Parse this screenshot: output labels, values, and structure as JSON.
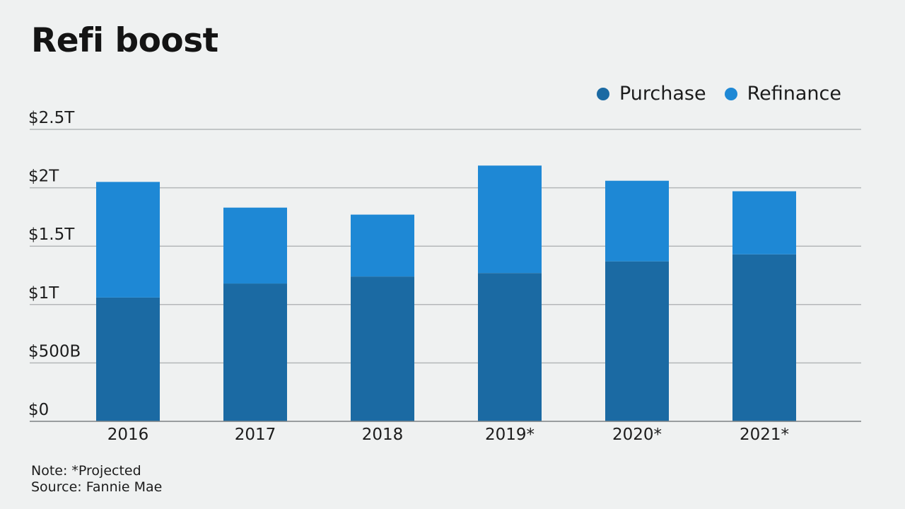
{
  "chart_data": {
    "type": "bar",
    "stacked": true,
    "title": "Refi boost",
    "categories": [
      "2016",
      "2017",
      "2018",
      "2019*",
      "2020*",
      "2021*"
    ],
    "series": [
      {
        "name": "Purchase",
        "color": "#1b6aa3",
        "values": [
          1.06,
          1.18,
          1.24,
          1.27,
          1.37,
          1.43
        ]
      },
      {
        "name": "Refinance",
        "color": "#1e88d5",
        "values": [
          0.99,
          0.65,
          0.53,
          0.92,
          0.69,
          0.54
        ]
      }
    ],
    "yticks": [
      0,
      0.5,
      1,
      1.5,
      2,
      2.5
    ],
    "ytick_labels": [
      "$0",
      "$500B",
      "$1T",
      "$1.5T",
      "$2T",
      "$2.5T"
    ],
    "ylim": [
      0,
      2.5
    ],
    "xlabel": "",
    "ylabel": "",
    "grid": true,
    "legend_position": "top-right"
  },
  "footer": {
    "note": "Note: *Projected",
    "source": "Source: Fannie Mae"
  }
}
